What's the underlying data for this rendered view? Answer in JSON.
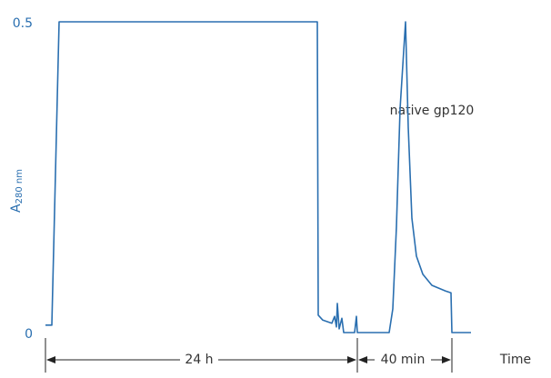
{
  "chart_data": {
    "type": "line",
    "ylabel": {
      "main": "A",
      "sub": "280 nm"
    },
    "color": "#2a6fb0",
    "x": [
      0,
      1.4,
      3,
      59.8,
      60,
      61,
      63,
      63.6,
      64,
      64.2,
      64.6,
      65.2,
      65.6,
      68,
      68.4,
      68.6,
      75.6,
      76.4,
      77.2,
      78,
      79.2,
      79.8,
      80.6,
      81.6,
      83,
      85,
      88,
      89.2,
      89.4,
      90,
      93.6
    ],
    "y": [
      0.012,
      0.012,
      0.5,
      0.5,
      0.028,
      0.02,
      0.015,
      0.026,
      0.009,
      0.047,
      0.006,
      0.023,
      0,
      0,
      0.026,
      0,
      0,
      0.038,
      0.17,
      0.36,
      0.5,
      0.33,
      0.184,
      0.123,
      0.094,
      0.076,
      0.067,
      0.064,
      0,
      0,
      0
    ],
    "xlim": [
      0,
      110
    ],
    "ylim": [
      0,
      0.5
    ],
    "yticks": [
      0,
      0.5
    ],
    "annotations": {
      "peak": "native gp120",
      "span1": "24 h",
      "span2": "40 min",
      "axis": "Time"
    }
  }
}
